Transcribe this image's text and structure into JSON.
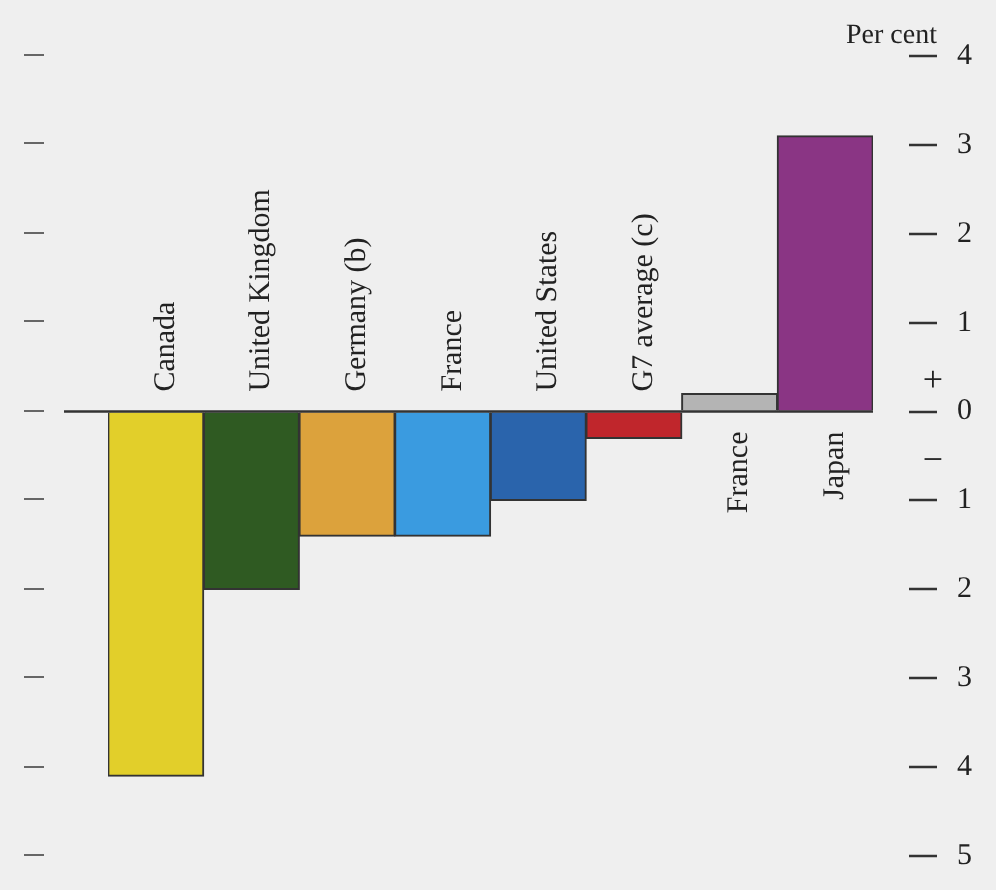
{
  "chart_data": {
    "type": "bar",
    "ylabel": "Per cent",
    "categories": [
      "Canada",
      "United Kingdom",
      "Germany (b)",
      "France",
      "United States",
      "G7 average (c)",
      "France",
      "Japan"
    ],
    "values": [
      -4.1,
      -2.0,
      -1.4,
      -1.4,
      -1.0,
      -0.3,
      0.2,
      3.1
    ],
    "colors": [
      "#e2cf2a",
      "#2f5a22",
      "#dca23c",
      "#3a9be0",
      "#2a64ac",
      "#c0262c",
      "#b4b4b4",
      "#8a3584"
    ],
    "ylim": [
      -5,
      4
    ],
    "yticks": [
      {
        "value": -5,
        "label": "5"
      },
      {
        "value": -4,
        "label": "4"
      },
      {
        "value": -3,
        "label": "3"
      },
      {
        "value": -2,
        "label": "2"
      },
      {
        "value": -1,
        "label": "1"
      },
      0,
      1,
      2,
      3,
      4
    ],
    "annotations": [
      "+",
      "−"
    ],
    "grid": false,
    "legend": false
  }
}
